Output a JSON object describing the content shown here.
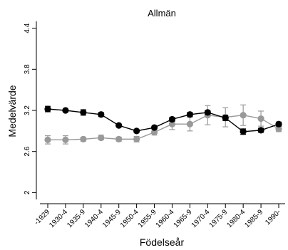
{
  "chart_data": {
    "type": "line",
    "title": "Allmän",
    "xlabel": "Födelseår",
    "ylabel": "Medelvärde",
    "categories": [
      "-1929",
      "1930-4",
      "1935-9",
      "1940-4",
      "1945-9",
      "1950-4",
      "1955-9",
      "1960-4",
      "1965-9",
      "1970-4",
      "1975-9",
      "1980-4",
      "1985-9",
      "1990-"
    ],
    "ylim": [
      1.9,
      4.5
    ],
    "yticks": [
      2,
      2.6,
      3.2,
      3.8,
      4.4
    ],
    "ytick_labels": [
      "2",
      "2.6",
      "3.2",
      "3.8",
      "4.4"
    ],
    "grid": false,
    "series": [
      {
        "color": "#000000",
        "marker": "circle",
        "values": [
          3.22,
          3.2,
          3.17,
          3.14,
          2.98,
          2.9,
          2.95,
          3.07,
          3.14,
          3.17,
          3.09,
          2.89,
          2.91,
          3.0
        ],
        "lower": [
          3.18,
          3.18,
          3.13,
          3.11,
          2.96,
          2.88,
          2.93,
          3.04,
          3.11,
          3.14,
          3.05,
          2.85,
          2.88,
          2.97
        ],
        "upper": [
          3.26,
          3.22,
          3.21,
          3.17,
          3.0,
          2.92,
          2.97,
          3.1,
          3.17,
          3.2,
          3.13,
          2.93,
          2.94,
          3.03
        ]
      },
      {
        "color": "#999999",
        "marker": "circle",
        "values": [
          2.77,
          2.77,
          2.78,
          2.8,
          2.78,
          2.78,
          2.88,
          3.0,
          3.0,
          3.13,
          3.1,
          3.13,
          3.08,
          2.93
        ],
        "lower": [
          2.71,
          2.71,
          2.75,
          2.77,
          2.75,
          2.74,
          2.84,
          2.92,
          2.9,
          2.99,
          2.96,
          2.98,
          2.97,
          2.89
        ],
        "upper": [
          2.83,
          2.83,
          2.81,
          2.84,
          2.81,
          2.82,
          2.92,
          3.08,
          3.1,
          3.27,
          3.24,
          3.28,
          3.19,
          2.97
        ]
      }
    ]
  }
}
